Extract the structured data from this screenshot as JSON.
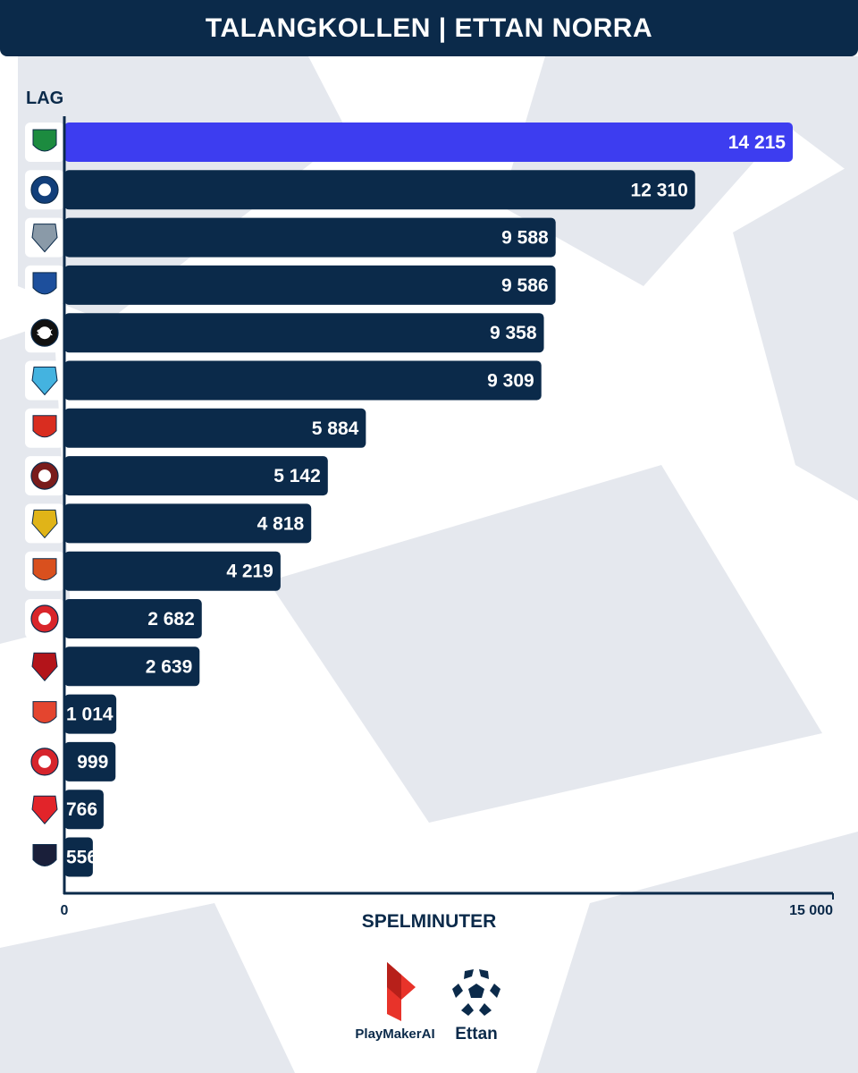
{
  "header": {
    "title": "TALANGKOLLEN | ETTAN NORRA"
  },
  "colors": {
    "header_bg": "#0b2a4a",
    "bar": "#0b2a4a",
    "bar_highlight": "#3d3df0",
    "background_shapes": "#e5e8ee",
    "brand_red": "#e8332a"
  },
  "chart_data": {
    "type": "bar",
    "orientation": "horizontal",
    "ylabel": "LAG",
    "xlabel": "SPELMINUTER",
    "xlim": [
      0,
      15000
    ],
    "x_ticks": [
      "0",
      "15 000"
    ],
    "grid": false,
    "legend": "none",
    "categories": [
      "team-1-logo",
      "team-2-logo",
      "team-3-logo",
      "team-4-logo",
      "team-5-logo",
      "team-6-logo",
      "team-7-logo",
      "team-8-logo",
      "team-9-logo",
      "team-10-logo",
      "team-11-logo",
      "team-12-logo",
      "team-13-logo",
      "team-14-logo",
      "team-15-logo",
      "team-16-logo"
    ],
    "values": [
      14215,
      12310,
      9588,
      9586,
      9358,
      9309,
      5884,
      5142,
      4818,
      4219,
      2682,
      2639,
      1014,
      999,
      766,
      556
    ],
    "value_labels": [
      "14 215",
      "12 310",
      "9 588",
      "9 586",
      "9 358",
      "9 309",
      "5 884",
      "5 142",
      "4 818",
      "4 219",
      "2 682",
      "2 639",
      "1 014",
      "999",
      "766",
      "556"
    ],
    "logo_text": [
      "",
      "",
      "",
      "",
      "SFK",
      "",
      "",
      "",
      "",
      "",
      "",
      "",
      "",
      "",
      "",
      ""
    ],
    "highlight_index": 0
  },
  "brands": {
    "playmaker_label": "PlayMakerAI",
    "ettan_label": "Ettan"
  }
}
